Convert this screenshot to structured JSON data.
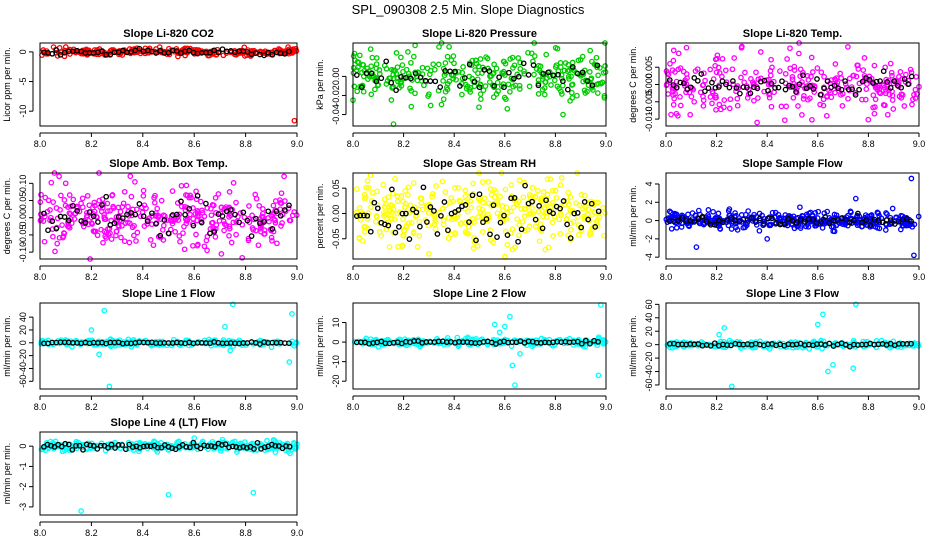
{
  "figure": {
    "title": "SPL_090308  2.5 Min. Slope Diagnostics"
  },
  "chart_data": [
    {
      "type": "scatter",
      "title": "Slope Li-820 CO2",
      "xlabel": "",
      "ylabel": "Licor ppm per min.",
      "xlim": [
        8.0,
        9.0
      ],
      "ylim": [
        -12.5,
        1.5
      ],
      "xticks": [
        8.0,
        8.2,
        8.4,
        8.6,
        8.8,
        9.0
      ],
      "yticks": [
        0,
        -5,
        -10
      ],
      "ytick_labels": [
        "0",
        "-5",
        "-10"
      ],
      "color": "#ff0000",
      "center": 0,
      "spread": 0.3,
      "black_spread": 0.25,
      "n": 260,
      "nb": 60,
      "outliers": [
        [
          8.99,
          -11.6
        ],
        [
          8.82,
          -0.7
        ],
        [
          8.66,
          -0.6
        ]
      ]
    },
    {
      "type": "scatter",
      "title": "Slope Li-820 Pressure",
      "xlabel": "",
      "ylabel": "kPa per min.",
      "xlim": [
        8.0,
        9.0
      ],
      "ylim": [
        -0.052,
        0.035
      ],
      "xticks": [
        8.0,
        8.2,
        8.4,
        8.6,
        8.8,
        9.0
      ],
      "yticks": [
        0.0,
        -0.02,
        -0.04
      ],
      "ytick_labels": [
        "0.00",
        "-0.02",
        "-0.04"
      ],
      "color": "#00cc00",
      "center": 0.0,
      "spread": 0.012,
      "black_spread": 0.008,
      "n": 320,
      "nb": 50,
      "outliers": [
        [
          8.16,
          -0.05
        ],
        [
          8.83,
          -0.04
        ],
        [
          8.61,
          -0.034
        ],
        [
          8.38,
          0.031
        ],
        [
          8.0,
          -0.025
        ]
      ]
    },
    {
      "type": "scatter",
      "title": "Slope Li-820 Temp.",
      "xlabel": "",
      "ylabel": "degrees C per min.",
      "xlim": [
        8.0,
        9.0
      ],
      "ylim": [
        -0.012,
        0.012
      ],
      "xticks": [
        8.0,
        8.2,
        8.4,
        8.6,
        8.8,
        9.0
      ],
      "yticks": [
        0.005,
        0.0,
        -0.005,
        -0.01
      ],
      "ytick_labels": [
        "0.005",
        "0.000",
        "-0.005",
        "-0.010"
      ],
      "color": "#ff00ff",
      "center": 0.0,
      "spread": 0.004,
      "black_spread": 0.0015,
      "n": 300,
      "nb": 70,
      "outliers": [
        [
          8.36,
          -0.011
        ],
        [
          8.3,
          0.011
        ],
        [
          8.49,
          0.0105
        ],
        [
          8.05,
          0.009
        ]
      ]
    },
    {
      "type": "scatter",
      "title": "Slope Amb. Box Temp.",
      "xlabel": "",
      "ylabel": "degrees C per min.",
      "xlim": [
        8.0,
        9.0
      ],
      "ylim": [
        -0.12,
        0.13
      ],
      "xticks": [
        8.0,
        8.2,
        8.4,
        8.6,
        8.8,
        9.0
      ],
      "yticks": [
        0.1,
        0.05,
        0.0,
        -0.05,
        -0.1
      ],
      "ytick_labels": [
        "0.10",
        "0.05",
        "0.00",
        "-0.05",
        "-0.10"
      ],
      "color": "#ff00ff",
      "center": 0.0,
      "spread": 0.045,
      "black_spread": 0.03,
      "n": 360,
      "nb": 60,
      "outliers": [
        [
          8.65,
          -0.095
        ],
        [
          8.95,
          0.12
        ],
        [
          8.1,
          0.1
        ]
      ]
    },
    {
      "type": "scatter",
      "title": "Slope Gas Stream RH",
      "xlabel": "",
      "ylabel": "percent per min.",
      "xlim": [
        8.0,
        9.0
      ],
      "ylim": [
        -0.09,
        0.08
      ],
      "xticks": [
        8.0,
        8.2,
        8.4,
        8.6,
        8.8,
        9.0
      ],
      "yticks": [
        0.05,
        0.0,
        -0.05
      ],
      "ytick_labels": [
        "0.05",
        "0.00",
        "-0.05"
      ],
      "color": "#ffff00",
      "center": 0.0,
      "spread": 0.03,
      "black_spread": 0.025,
      "n": 360,
      "nb": 70,
      "outliers": [
        [
          8.78,
          0.068
        ],
        [
          8.6,
          -0.085
        ],
        [
          8.3,
          -0.08
        ]
      ]
    },
    {
      "type": "scatter",
      "title": "Slope Sample Flow",
      "xlabel": "",
      "ylabel": "ml/min per min.",
      "xlim": [
        8.0,
        9.0
      ],
      "ylim": [
        -4.2,
        5.2
      ],
      "xticks": [
        8.0,
        8.2,
        8.4,
        8.6,
        8.8,
        9.0
      ],
      "yticks": [
        4,
        2,
        0,
        -2,
        -4
      ],
      "ytick_labels": [
        "4",
        "2",
        "0",
        "-2",
        "-4"
      ],
      "color": "#0000ff",
      "center": 0,
      "spread": 0.45,
      "black_spread": 0.25,
      "n": 380,
      "nb": 60,
      "outliers": [
        [
          8.97,
          4.6
        ],
        [
          8.98,
          -3.8
        ],
        [
          8.12,
          -2.9
        ],
        [
          8.75,
          2.4
        ],
        [
          8.4,
          -2.0
        ]
      ]
    },
    {
      "type": "scatter",
      "title": "Slope Line 1 Flow",
      "xlabel": "",
      "ylabel": "ml/min per min.",
      "xlim": [
        8.0,
        9.0
      ],
      "ylim": [
        -72,
        62
      ],
      "xticks": [
        8.0,
        8.2,
        8.4,
        8.6,
        8.8,
        9.0
      ],
      "yticks": [
        40,
        20,
        0,
        -20,
        -40,
        -60
      ],
      "ytick_labels": [
        "40",
        "20",
        "0",
        "-20",
        "-40",
        "-60"
      ],
      "color": "#00ffff",
      "center": 0,
      "spread": 2.5,
      "black_spread": 0.8,
      "n": 240,
      "nb": 60,
      "outliers": [
        [
          8.25,
          50
        ],
        [
          8.27,
          -68
        ],
        [
          8.75,
          60
        ],
        [
          8.98,
          45
        ],
        [
          8.97,
          -30
        ],
        [
          8.2,
          20
        ],
        [
          8.23,
          -18
        ],
        [
          8.74,
          -12
        ],
        [
          8.72,
          25
        ]
      ]
    },
    {
      "type": "scatter",
      "title": "Slope Line 2 Flow",
      "xlabel": "",
      "ylabel": "ml/min per min.",
      "xlim": [
        8.0,
        9.0
      ],
      "ylim": [
        -24,
        20
      ],
      "xticks": [
        8.0,
        8.2,
        8.4,
        8.6,
        8.8,
        9.0
      ],
      "yticks": [
        10,
        0,
        -10,
        -20
      ],
      "ytick_labels": [
        "10",
        "0",
        "-10",
        "-20"
      ],
      "color": "#00ffff",
      "center": 0,
      "spread": 0.9,
      "black_spread": 0.4,
      "n": 240,
      "nb": 60,
      "outliers": [
        [
          8.62,
          13
        ],
        [
          8.64,
          -22
        ],
        [
          8.6,
          8
        ],
        [
          8.66,
          -6
        ],
        [
          8.58,
          5
        ],
        [
          8.63,
          -12
        ],
        [
          8.98,
          19
        ],
        [
          8.97,
          -17
        ],
        [
          8.56,
          9
        ]
      ]
    },
    {
      "type": "scatter",
      "title": "Slope Line 3 Flow",
      "xlabel": "",
      "ylabel": "ml/min per min.",
      "xlim": [
        8.0,
        9.0
      ],
      "ylim": [
        -66,
        62
      ],
      "xticks": [
        8.0,
        8.2,
        8.4,
        8.6,
        8.8,
        9.0
      ],
      "yticks": [
        60,
        40,
        20,
        0,
        -20,
        -40,
        -60
      ],
      "ytick_labels": [
        "60",
        "40",
        "20",
        "0",
        "-20",
        "-40",
        "-60"
      ],
      "color": "#00ffff",
      "center": 0,
      "spread": 2.5,
      "black_spread": 1.0,
      "n": 240,
      "nb": 60,
      "outliers": [
        [
          8.26,
          -62
        ],
        [
          8.23,
          25
        ],
        [
          8.62,
          45
        ],
        [
          8.64,
          -40
        ],
        [
          8.66,
          -30
        ],
        [
          8.75,
          60
        ],
        [
          8.74,
          -35
        ],
        [
          8.6,
          30
        ],
        [
          8.21,
          15
        ]
      ]
    },
    {
      "type": "scatter",
      "title": "Slope Line 4 (LT) Flow",
      "xlabel": "",
      "ylabel": "ml/min per min.",
      "xlim": [
        8.0,
        9.0
      ],
      "ylim": [
        -3.4,
        0.7
      ],
      "xticks": [
        8.0,
        8.2,
        8.4,
        8.6,
        8.8,
        9.0
      ],
      "yticks": [
        0,
        -1,
        -2,
        -3
      ],
      "ytick_labels": [
        "0",
        "-1",
        "-2",
        "-3"
      ],
      "color": "#00ffff",
      "center": 0,
      "spread": 0.12,
      "black_spread": 0.08,
      "n": 280,
      "nb": 70,
      "outliers": [
        [
          8.16,
          -3.2
        ],
        [
          8.5,
          -2.4
        ],
        [
          8.83,
          -2.3
        ],
        [
          8.6,
          0.4
        ]
      ]
    }
  ]
}
